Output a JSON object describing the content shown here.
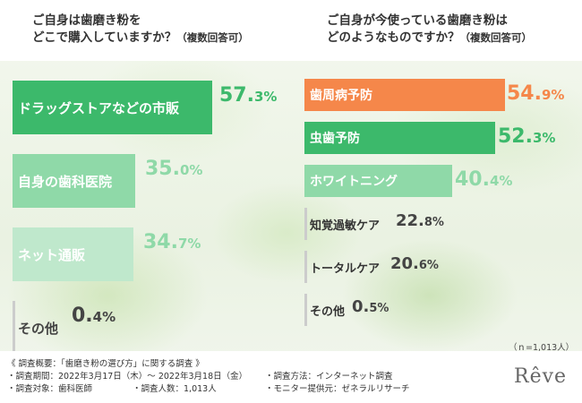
{
  "colors": {
    "dark_green": "#3cb96b",
    "light_green": "#8fd9a8",
    "pale_green": "#bfe8cc",
    "orange": "#f5874a",
    "white": "#ffffff",
    "gray_outline": "#cccccc"
  },
  "chart_data": [
    {
      "type": "bar",
      "orientation": "horizontal",
      "title_line1": "ご自身は歯磨き粉を",
      "title_line2": "どこで購入していますか？",
      "title_note": "（複数回答可）",
      "categories": [
        "ドラッグストアなどの市販",
        "自身の歯科医院",
        "ネット通販",
        "その他"
      ],
      "values": [
        57.3,
        35.0,
        34.7,
        0.4
      ],
      "value_labels": [
        {
          "int": "57.",
          "dec": "3%"
        },
        {
          "int": "35.",
          "dec": "0%"
        },
        {
          "int": "34.",
          "dec": "7%"
        },
        {
          "int": "0.",
          "dec": "4%"
        }
      ],
      "unit": "%"
    },
    {
      "type": "bar",
      "orientation": "horizontal",
      "title_line1": "ご自身が今使っている歯磨き粉は",
      "title_line2": "どのようなものですか？",
      "title_note": "（複数回答可）",
      "categories": [
        "歯周病予防",
        "虫歯予防",
        "ホワイトニング",
        "知覚過敏ケア",
        "トータルケア",
        "その他"
      ],
      "values": [
        54.9,
        52.3,
        40.4,
        22.8,
        20.6,
        0.5
      ],
      "value_labels": [
        {
          "int": "54.",
          "dec": "9%"
        },
        {
          "int": "52.",
          "dec": "3%"
        },
        {
          "int": "40.",
          "dec": "4%"
        },
        {
          "int": "22.",
          "dec": "8%"
        },
        {
          "int": "20.",
          "dec": "6%"
        },
        {
          "int": "0.",
          "dec": "5%"
        }
      ],
      "unit": "%"
    }
  ],
  "sample_note": "（ｎ=1,013人）",
  "footer": {
    "heading": "《 調査概要：「歯磨き粉の選び方」に関する調査 》",
    "period": "・調査期間：2022年3月17日（木）～ 2022年3月18日（金）",
    "method": "・調査方法：インターネット調査",
    "target": "・調査対象：歯科医師",
    "people": "・調査人数：1,013人",
    "provider": "・モニター提供元：ゼネラルリサーチ"
  },
  "logo_text": "Rêve"
}
